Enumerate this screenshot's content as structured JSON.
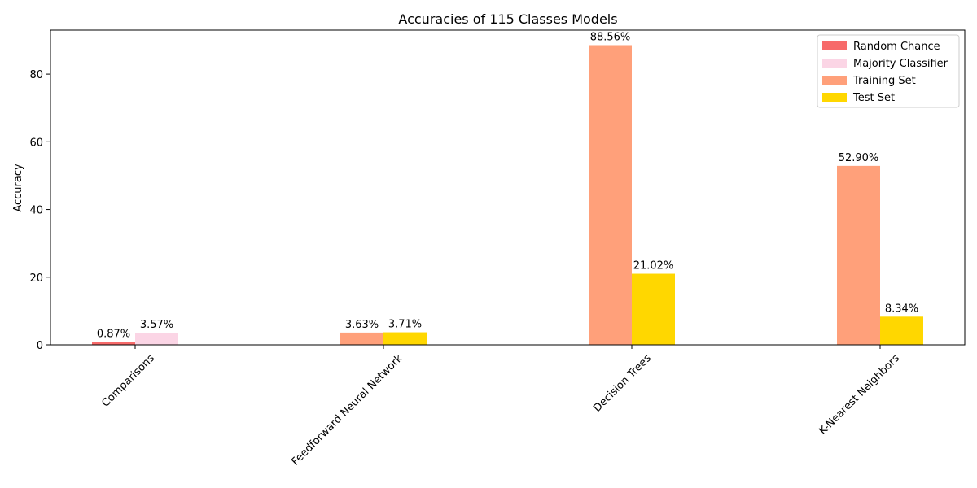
{
  "chart_data": {
    "type": "bar",
    "title": "Accuracies of 115 Classes Models",
    "xlabel": "",
    "ylabel": "Accuracy",
    "ylim": [
      0,
      93
    ],
    "yticks": [
      0,
      20,
      40,
      60,
      80
    ],
    "grid": false,
    "legend_position": "top-right",
    "categories": [
      "Comparisons",
      "Feedforward Neural Network",
      "Decision Trees",
      "K-Nearest Neighbors"
    ],
    "series": [
      {
        "name": "Random Chance",
        "color": "#f76a6a",
        "values": [
          0.87,
          null,
          null,
          null
        ],
        "labels": [
          "0.87%",
          "",
          "",
          ""
        ]
      },
      {
        "name": "Majority Classifier",
        "color": "#fbd5e5",
        "values": [
          3.57,
          null,
          null,
          null
        ],
        "labels": [
          "3.57%",
          "",
          "",
          ""
        ]
      },
      {
        "name": "Training Set",
        "color": "#ffa07a",
        "values": [
          null,
          3.63,
          88.56,
          52.9
        ],
        "labels": [
          "",
          "3.63%",
          "88.56%",
          "52.90%"
        ]
      },
      {
        "name": "Test Set",
        "color": "#ffd700",
        "values": [
          null,
          3.71,
          21.02,
          8.34
        ],
        "labels": [
          "",
          "3.71%",
          "21.02%",
          "8.34%"
        ]
      }
    ],
    "bar_pairs": [
      {
        "category": "Comparisons",
        "left_series": 0,
        "right_series": 1
      },
      {
        "category": "Feedforward Neural Network",
        "left_series": 2,
        "right_series": 3
      },
      {
        "category": "Decision Trees",
        "left_series": 2,
        "right_series": 3
      },
      {
        "category": "K-Nearest Neighbors",
        "left_series": 2,
        "right_series": 3
      }
    ]
  }
}
